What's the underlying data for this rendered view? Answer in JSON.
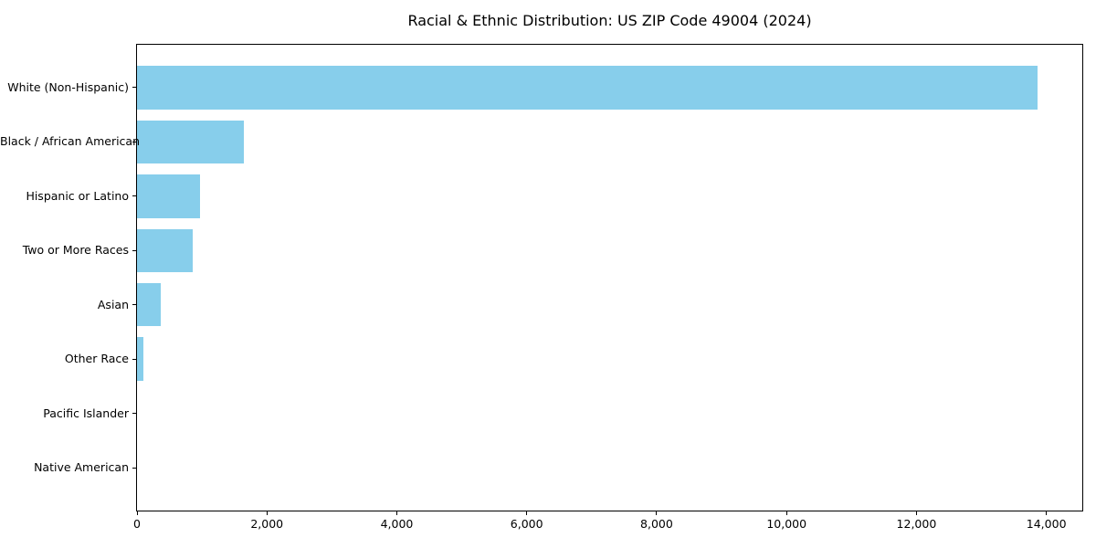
{
  "chart_data": {
    "type": "bar",
    "orientation": "horizontal",
    "title": "Racial & Ethnic Distribution: US ZIP Code 49004 (2024)",
    "categories": [
      "White (Non-Hispanic)",
      "Black / African American",
      "Hispanic or Latino",
      "Two or More Races",
      "Asian",
      "Other Race",
      "Pacific Islander",
      "Native American"
    ],
    "values": [
      13860,
      1640,
      965,
      855,
      365,
      100,
      0,
      0
    ],
    "xlabel": "",
    "ylabel": "",
    "xlim": [
      0,
      14553
    ],
    "x_ticks": [
      0,
      2000,
      4000,
      6000,
      8000,
      10000,
      12000,
      14000
    ],
    "x_tick_labels": [
      "0",
      "2,000",
      "4,000",
      "6,000",
      "8,000",
      "10,000",
      "12,000",
      "14,000"
    ],
    "bar_color": "#87CEEB",
    "grid": false,
    "legend": "none",
    "background_color": "#ffffff",
    "axis_color": "#000000"
  }
}
